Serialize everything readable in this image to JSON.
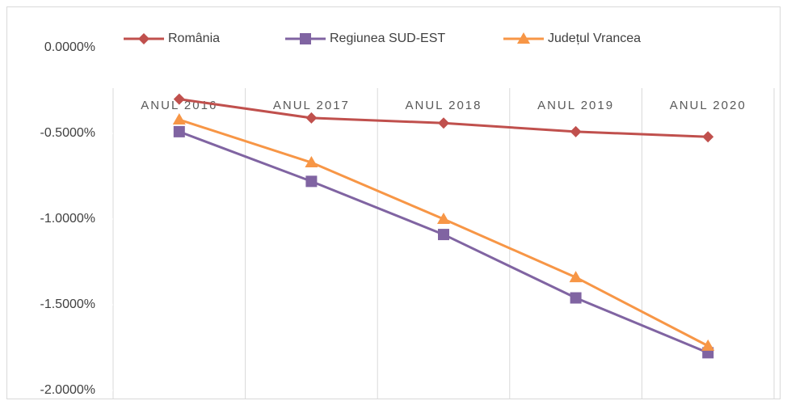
{
  "chart_data": {
    "type": "line",
    "categories": [
      "ANUL 2016",
      "ANUL 2017",
      "ANUL 2018",
      "ANUL 2019",
      "ANUL 2020"
    ],
    "series": [
      {
        "name": "România",
        "color": "#c0504d",
        "marker": "diamond",
        "values": [
          -0.3,
          -0.41,
          -0.44,
          -0.49,
          -0.52
        ]
      },
      {
        "name": "Regiunea SUD-EST",
        "color": "#8064a2",
        "marker": "square",
        "values": [
          -0.49,
          -0.78,
          -1.09,
          -1.46,
          -1.78
        ]
      },
      {
        "name": "Județul Vrancea",
        "color": "#f79646",
        "marker": "triangle",
        "values": [
          -0.42,
          -0.67,
          -1.0,
          -1.34,
          -1.74
        ]
      }
    ],
    "ylim": [
      -2,
      0
    ],
    "yticks": [
      {
        "value": 0,
        "label": "0.0000%"
      },
      {
        "value": -0.5,
        "label": "-0.5000%"
      },
      {
        "value": -1,
        "label": "-1.0000%"
      },
      {
        "value": -1.5,
        "label": "-1.5000%"
      },
      {
        "value": -2,
        "label": "-2.0000%"
      }
    ],
    "legend": "top"
  }
}
